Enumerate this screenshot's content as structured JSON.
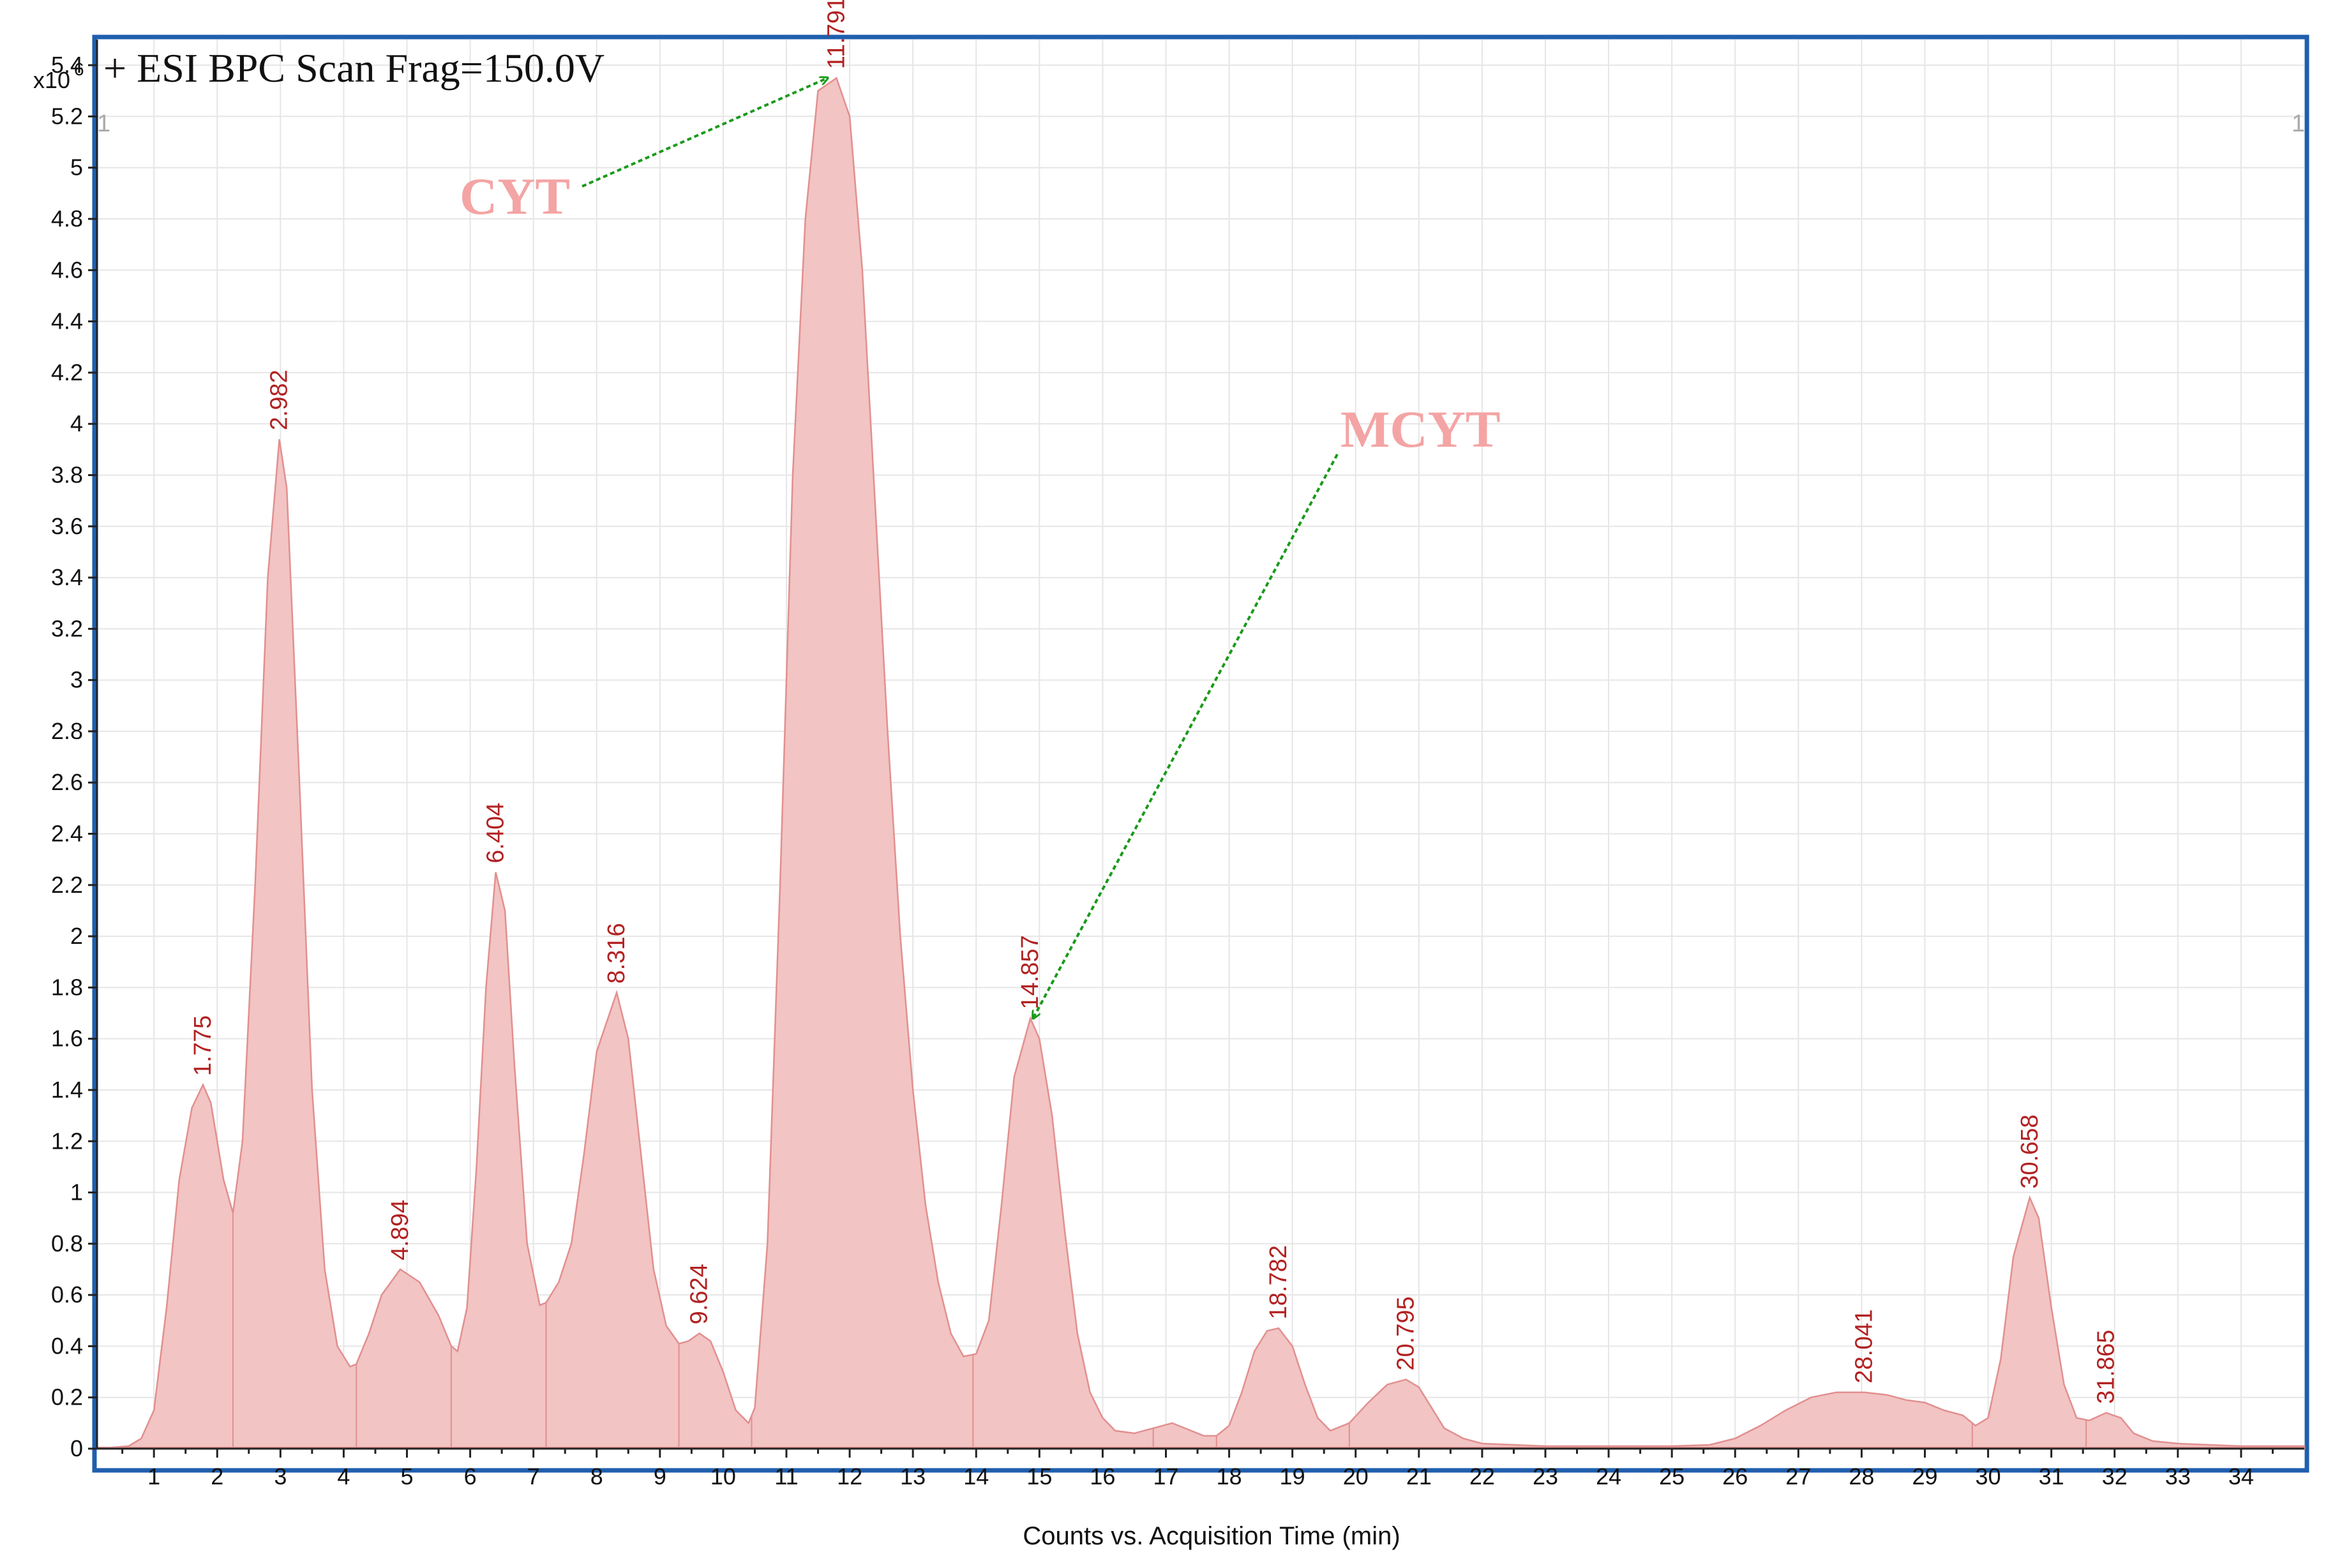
{
  "chart_data": {
    "type": "area",
    "title": "+ ESI BPC Scan Frag=150.0V",
    "scale_label": "x10",
    "scale_exponent": "6",
    "corner_marks": [
      "1",
      "1"
    ],
    "xlabel": "Counts vs. Acquisition Time (min)",
    "ylabel": "",
    "xlim": [
      0.1,
      35
    ],
    "ylim": [
      0,
      5.5
    ],
    "x_ticks": [
      1,
      2,
      3,
      4,
      5,
      6,
      7,
      8,
      9,
      10,
      11,
      12,
      13,
      14,
      15,
      16,
      17,
      18,
      19,
      20,
      21,
      22,
      23,
      24,
      25,
      26,
      27,
      28,
      29,
      30,
      31,
      32,
      33,
      34
    ],
    "y_ticks": [
      0,
      0.2,
      0.4,
      0.6,
      0.8,
      1,
      1.2,
      1.4,
      1.6,
      1.8,
      2,
      2.2,
      2.4,
      2.6,
      2.8,
      3,
      3.2,
      3.4,
      3.6,
      3.8,
      4,
      4.2,
      4.4,
      4.6,
      4.8,
      5,
      5.2,
      5.4
    ],
    "grid": true,
    "fill_color": "#f2c4c4",
    "line_color": "#e28f8f",
    "label_color": "#b22222",
    "series": [
      {
        "x": [
          0.1,
          0.6,
          0.8,
          1.0,
          1.2,
          1.4,
          1.6,
          1.775,
          1.9,
          2.1,
          2.25,
          2.4,
          2.6,
          2.8,
          2.982,
          3.1,
          3.3,
          3.5,
          3.7,
          3.9,
          4.1,
          4.2,
          4.4,
          4.6,
          4.894,
          5.2,
          5.5,
          5.7,
          5.8,
          5.95,
          6.1,
          6.25,
          6.404,
          6.55,
          6.7,
          6.9,
          7.1,
          7.2,
          7.4,
          7.6,
          7.8,
          8.0,
          8.316,
          8.5,
          8.7,
          8.9,
          9.1,
          9.3,
          9.45,
          9.624,
          9.8,
          10.0,
          10.2,
          10.4,
          10.5,
          10.7,
          10.9,
          11.1,
          11.3,
          11.5,
          11.791,
          12.0,
          12.2,
          12.4,
          12.6,
          12.8,
          13.0,
          13.2,
          13.4,
          13.6,
          13.8,
          14.0,
          14.2,
          14.4,
          14.6,
          14.857,
          15.0,
          15.2,
          15.4,
          15.6,
          15.8,
          16.0,
          16.2,
          16.5,
          16.8,
          17.1,
          17.4,
          17.6,
          17.8,
          18.0,
          18.2,
          18.4,
          18.6,
          18.782,
          19.0,
          19.2,
          19.4,
          19.6,
          19.9,
          20.2,
          20.5,
          20.795,
          21.0,
          21.2,
          21.4,
          21.7,
          22.0,
          22.5,
          23.0,
          24.0,
          25.0,
          25.6,
          26.0,
          26.4,
          26.8,
          27.2,
          27.6,
          28.041,
          28.4,
          28.7,
          29.0,
          29.3,
          29.6,
          29.8,
          30.0,
          30.2,
          30.4,
          30.658,
          30.8,
          31.0,
          31.2,
          31.4,
          31.6,
          31.865,
          32.1,
          32.3,
          32.6,
          33.0,
          34.0,
          35.0
        ],
        "y": [
          0,
          0.01,
          0.04,
          0.15,
          0.55,
          1.05,
          1.33,
          1.42,
          1.35,
          1.05,
          0.92,
          1.2,
          2.2,
          3.4,
          3.94,
          3.75,
          2.6,
          1.4,
          0.7,
          0.4,
          0.32,
          0.33,
          0.45,
          0.6,
          0.7,
          0.65,
          0.52,
          0.4,
          0.38,
          0.55,
          1.1,
          1.8,
          2.25,
          2.1,
          1.5,
          0.8,
          0.56,
          0.57,
          0.65,
          0.8,
          1.15,
          1.55,
          1.78,
          1.6,
          1.15,
          0.7,
          0.48,
          0.41,
          0.42,
          0.45,
          0.42,
          0.3,
          0.15,
          0.1,
          0.16,
          0.8,
          2.2,
          3.8,
          4.8,
          5.3,
          5.35,
          5.2,
          4.6,
          3.7,
          2.8,
          2.0,
          1.4,
          0.95,
          0.65,
          0.45,
          0.36,
          0.37,
          0.5,
          0.95,
          1.45,
          1.68,
          1.6,
          1.3,
          0.85,
          0.45,
          0.22,
          0.12,
          0.07,
          0.06,
          0.08,
          0.1,
          0.07,
          0.05,
          0.05,
          0.09,
          0.22,
          0.38,
          0.46,
          0.47,
          0.4,
          0.25,
          0.12,
          0.07,
          0.1,
          0.18,
          0.25,
          0.27,
          0.24,
          0.16,
          0.08,
          0.04,
          0.02,
          0.015,
          0.01,
          0.01,
          0.01,
          0.015,
          0.04,
          0.09,
          0.15,
          0.2,
          0.22,
          0.22,
          0.21,
          0.19,
          0.18,
          0.15,
          0.13,
          0.09,
          0.12,
          0.35,
          0.75,
          0.98,
          0.9,
          0.55,
          0.25,
          0.12,
          0.11,
          0.14,
          0.12,
          0.06,
          0.03,
          0.02,
          0.01,
          0.01
        ]
      }
    ],
    "peak_dividers": [
      2.25,
      4.2,
      5.7,
      7.2,
      9.3,
      10.45,
      13.95,
      16.8,
      17.8,
      19.9,
      29.75,
      31.55
    ],
    "peak_labels": [
      {
        "x": 1.775,
        "y": 1.42,
        "label": "1.775"
      },
      {
        "x": 2.982,
        "y": 3.94,
        "label": "2.982"
      },
      {
        "x": 4.894,
        "y": 0.7,
        "label": "4.894"
      },
      {
        "x": 6.404,
        "y": 2.25,
        "label": "6.404"
      },
      {
        "x": 8.316,
        "y": 1.78,
        "label": "8.316"
      },
      {
        "x": 9.624,
        "y": 0.45,
        "label": "9.624"
      },
      {
        "x": 11.791,
        "y": 5.35,
        "label": "11.791"
      },
      {
        "x": 14.857,
        "y": 1.68,
        "label": "14.857"
      },
      {
        "x": 18.782,
        "y": 0.47,
        "label": "18.782"
      },
      {
        "x": 20.795,
        "y": 0.27,
        "label": "20.795"
      },
      {
        "x": 28.041,
        "y": 0.22,
        "label": "28.041"
      },
      {
        "x": 30.658,
        "y": 0.98,
        "label": "30.658"
      },
      {
        "x": 31.865,
        "y": 0.14,
        "label": "31.865"
      }
    ],
    "annotations": [
      {
        "text": "CYT",
        "target_x": 11.65,
        "target_y": 5.35
      },
      {
        "text": "MCYT",
        "target_x": 14.9,
        "target_y": 1.68
      }
    ]
  }
}
